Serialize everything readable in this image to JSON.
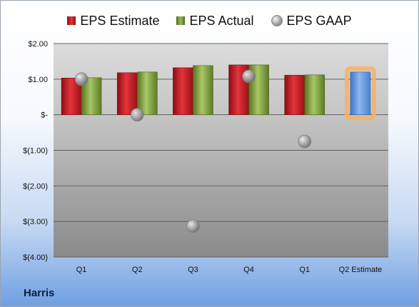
{
  "legend": {
    "estimate": "EPS Estimate",
    "actual": "EPS Actual",
    "gaap": "EPS GAAP"
  },
  "company": "Harris",
  "colors": {
    "estimate": "#c8242b",
    "actual": "#8cad4a",
    "gaap": "#a0a0a0",
    "forecast": "#6a9be0",
    "forecast_glow": "#f4b26a"
  },
  "chart_data": {
    "type": "bar",
    "categories": [
      "Q1",
      "Q2",
      "Q3",
      "Q4",
      "Q1",
      "Q2 Estimate"
    ],
    "series": [
      {
        "name": "EPS Estimate",
        "values": [
          1.03,
          1.18,
          1.32,
          1.4,
          1.11,
          null
        ]
      },
      {
        "name": "EPS Actual",
        "values": [
          1.04,
          1.2,
          1.38,
          1.4,
          1.12,
          1.2
        ]
      },
      {
        "name": "EPS GAAP",
        "type": "scatter",
        "values": [
          1.0,
          0.0,
          -3.13,
          1.08,
          -0.75,
          null
        ]
      }
    ],
    "ylim": [
      -4,
      2
    ],
    "yticks": [
      2,
      1,
      0,
      -1,
      -2,
      -3,
      -4
    ],
    "ytick_labels": [
      "$2.00",
      "$1.00",
      "$-",
      "$(1.00)",
      "$(2.00)",
      "$(3.00)",
      "$(4.00)"
    ],
    "highlighted_category": "Q2 Estimate",
    "grid": true,
    "legend_position": "top"
  }
}
